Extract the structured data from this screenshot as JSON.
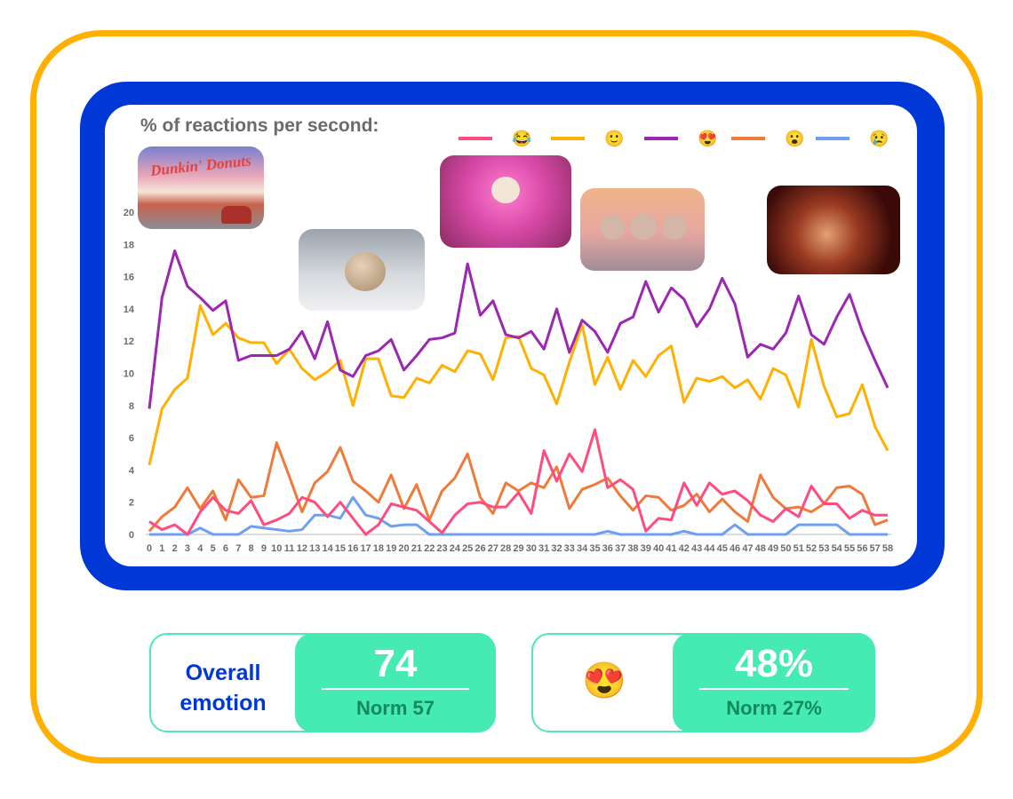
{
  "chart_data": {
    "type": "line",
    "title": "% of reactions per second:",
    "x": [
      0,
      1,
      2,
      3,
      4,
      5,
      6,
      7,
      8,
      9,
      10,
      11,
      12,
      13,
      14,
      15,
      16,
      17,
      18,
      19,
      20,
      21,
      22,
      23,
      24,
      25,
      26,
      27,
      28,
      29,
      30,
      31,
      32,
      33,
      34,
      35,
      36,
      37,
      38,
      39,
      40,
      41,
      42,
      43,
      44,
      45,
      46,
      47,
      48,
      49,
      50,
      51,
      52,
      53,
      54,
      55,
      56,
      57,
      58
    ],
    "yticks": [
      0,
      2,
      4,
      6,
      8,
      10,
      12,
      14,
      16,
      18,
      20
    ],
    "ylim": [
      0,
      20
    ],
    "grid": false,
    "legend_placement": "top-right",
    "series": [
      {
        "name": "😂",
        "color": "#FF4B7E",
        "values": [
          0.8,
          0.3,
          0.6,
          0.0,
          1.4,
          2.3,
          1.5,
          1.3,
          2.1,
          0.6,
          0.9,
          1.3,
          2.3,
          2.0,
          1.1,
          2.0,
          1.0,
          0.0,
          0.6,
          1.9,
          1.7,
          1.5,
          0.8,
          0.1,
          1.2,
          1.9,
          2.0,
          1.7,
          1.7,
          2.6,
          1.3,
          5.2,
          3.3,
          5.0,
          3.9,
          6.5,
          2.9,
          3.4,
          2.8,
          0.2,
          1.0,
          0.9,
          3.2,
          1.8,
          3.2,
          2.5,
          2.7,
          2.1,
          1.2,
          0.8,
          1.6,
          1.1,
          3.0,
          1.9,
          1.9,
          1.0,
          1.5,
          1.2,
          1.2
        ]
      },
      {
        "name": "🙂",
        "color": "#FFB000",
        "values": [
          4.3,
          7.8,
          9.0,
          9.7,
          14.2,
          12.4,
          13.1,
          12.2,
          11.9,
          11.9,
          10.6,
          11.5,
          10.3,
          9.6,
          10.1,
          10.8,
          8.0,
          10.9,
          10.9,
          8.6,
          8.5,
          9.7,
          9.4,
          10.5,
          10.1,
          11.4,
          11.2,
          9.6,
          12.2,
          12.3,
          10.3,
          9.9,
          8.1,
          10.7,
          13.0,
          9.3,
          11.0,
          9.0,
          10.8,
          9.8,
          11.1,
          11.7,
          8.2,
          9.7,
          9.5,
          9.8,
          9.1,
          9.6,
          8.4,
          10.3,
          9.9,
          7.9,
          12.1,
          9.2,
          7.3,
          7.5,
          9.3,
          6.7,
          5.2
        ]
      },
      {
        "name": "😍",
        "color": "#9C27B0",
        "values": [
          7.8,
          14.7,
          17.6,
          15.4,
          14.7,
          13.9,
          14.5,
          10.8,
          11.1,
          11.1,
          11.1,
          11.5,
          12.6,
          10.9,
          13.2,
          10.2,
          9.8,
          11.1,
          11.4,
          12.1,
          10.2,
          11.1,
          12.1,
          12.2,
          12.5,
          16.8,
          13.6,
          14.5,
          12.4,
          12.2,
          12.6,
          11.5,
          14.0,
          11.3,
          13.3,
          12.6,
          11.3,
          13.1,
          13.5,
          15.7,
          13.8,
          15.3,
          14.6,
          12.9,
          14.0,
          15.9,
          14.3,
          11.0,
          11.8,
          11.5,
          12.5,
          14.8,
          12.4,
          11.8,
          13.5,
          14.9,
          12.6,
          10.8,
          9.1
        ]
      },
      {
        "name": "😮",
        "color": "#F07A3A",
        "values": [
          0.2,
          1.1,
          1.7,
          2.9,
          1.6,
          2.7,
          0.9,
          3.4,
          2.3,
          2.4,
          5.7,
          3.6,
          1.4,
          3.2,
          3.9,
          5.4,
          3.3,
          2.7,
          2.0,
          3.7,
          1.6,
          3.1,
          0.9,
          2.7,
          3.5,
          5.0,
          2.3,
          1.3,
          3.2,
          2.7,
          3.2,
          2.9,
          4.2,
          1.6,
          2.8,
          3.1,
          3.5,
          2.4,
          1.5,
          2.4,
          2.3,
          1.5,
          1.8,
          2.5,
          1.4,
          2.2,
          1.4,
          0.8,
          3.7,
          2.3,
          1.6,
          1.7,
          1.4,
          1.9,
          2.9,
          3.0,
          2.5,
          0.6,
          0.9
        ]
      },
      {
        "name": "😢",
        "color": "#6FA0F0",
        "values": [
          0,
          0,
          0,
          0,
          0.4,
          0,
          0,
          0,
          0.5,
          0.4,
          0.3,
          0.2,
          0.3,
          1.2,
          1.2,
          1.0,
          2.3,
          1.2,
          1.0,
          0.5,
          0.6,
          0.6,
          0,
          0,
          0,
          0,
          0,
          0,
          0,
          0,
          0,
          0,
          0,
          0,
          0,
          0,
          0.2,
          0,
          0,
          0,
          0,
          0,
          0.2,
          0,
          0,
          0,
          0.6,
          0,
          0,
          0,
          0,
          0.6,
          0.6,
          0.6,
          0.6,
          0,
          0,
          0,
          0
        ]
      }
    ]
  },
  "thumbnails": [
    {
      "name": "diner-scene",
      "logo_text": "Dunkin' Donuts"
    },
    {
      "name": "snowball-scene"
    },
    {
      "name": "pink-mitten-scene"
    },
    {
      "name": "munchkins-scene"
    },
    {
      "name": "boy-scene"
    }
  ],
  "cards": [
    {
      "label": "Overall emotion",
      "label_line1": "Overall",
      "label_line2": "emotion",
      "value": "74",
      "norm": "Norm 57"
    },
    {
      "emoji": "😍",
      "value": "48%",
      "norm": "Norm 27%"
    }
  ],
  "colors": {
    "frame": "#FFB000",
    "panel": "#0038D8",
    "card_green": "#46EAB3",
    "norm_text": "#128a5a"
  }
}
